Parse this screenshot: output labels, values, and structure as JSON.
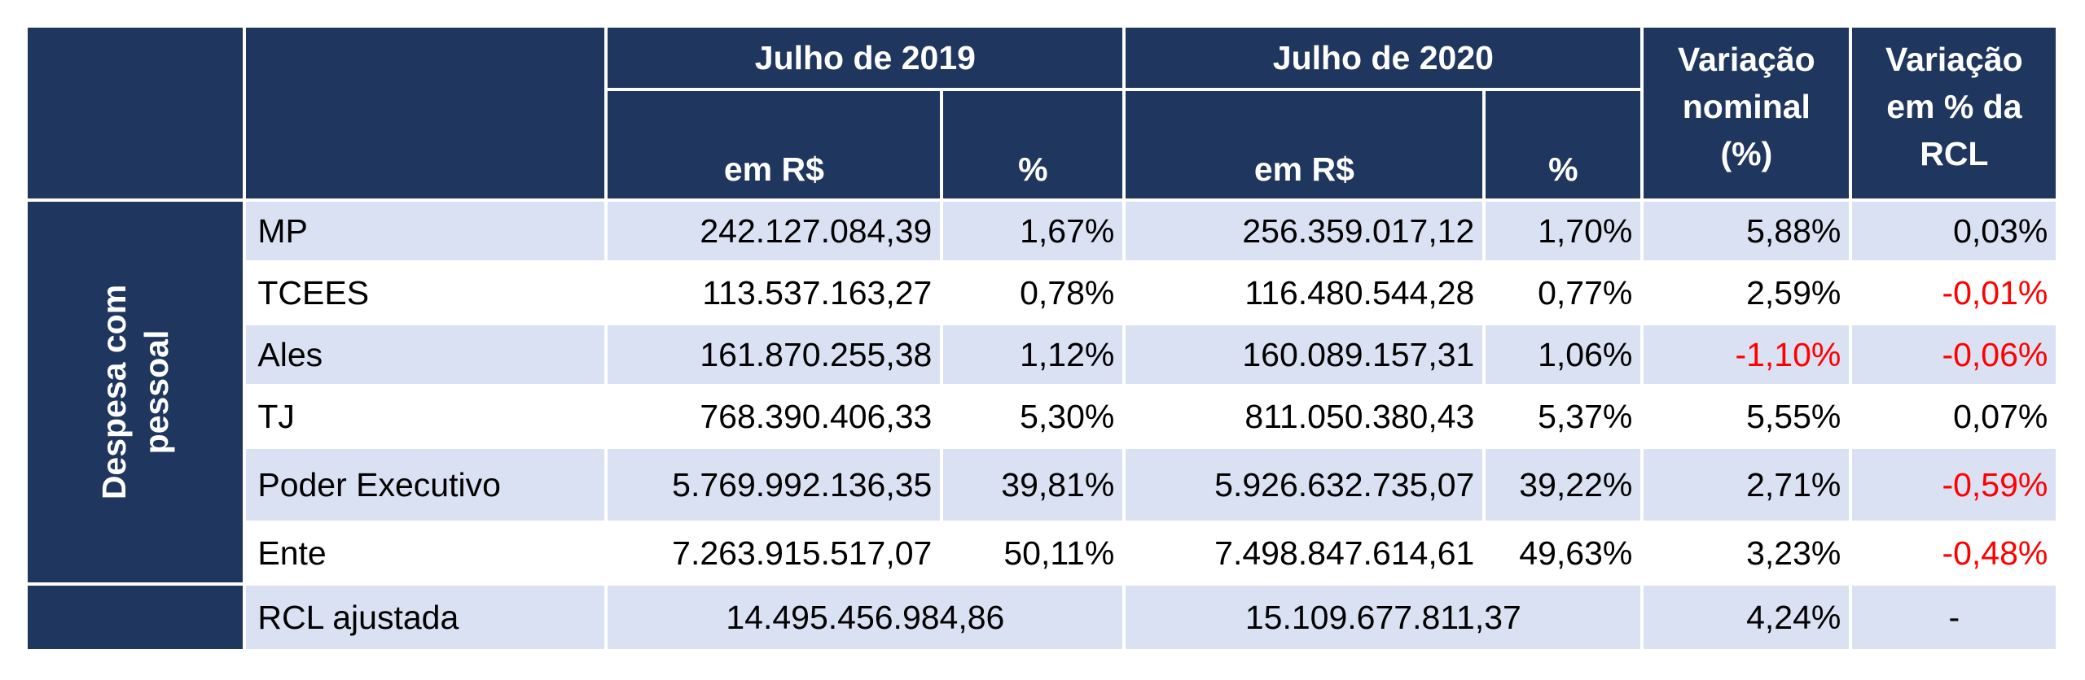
{
  "headers": {
    "julho2019": "Julho de 2019",
    "julho2020": "Julho de 2020",
    "em_rs": "em R$",
    "pct": "%",
    "variacao_nominal_l1": "Variação",
    "variacao_nominal_l2": "nominal",
    "variacao_nominal_l3": "(%)",
    "variacao_rcl_l1": "Variação",
    "variacao_rcl_l2": "em % da",
    "variacao_rcl_l3": "RCL"
  },
  "side_label": {
    "line1": "Despesa com",
    "line2": "pessoal"
  },
  "rows": [
    {
      "name": "MP",
      "v2019": "242.127.084,39",
      "p2019": "1,67%",
      "v2020": "256.359.017,12",
      "p2020": "1,70%",
      "var_nom": "5,88%",
      "var_rcl": "0,03%"
    },
    {
      "name": "TCEES",
      "v2019": "113.537.163,27",
      "p2019": "0,78%",
      "v2020": "116.480.544,28",
      "p2020": "0,77%",
      "var_nom": "2,59%",
      "var_rcl": "-0,01%"
    },
    {
      "name": "Ales",
      "v2019": "161.870.255,38",
      "p2019": "1,12%",
      "v2020": "160.089.157,31",
      "p2020": "1,06%",
      "var_nom": "-1,10%",
      "var_rcl": "-0,06%"
    },
    {
      "name": "TJ",
      "v2019": "768.390.406,33",
      "p2019": "5,30%",
      "v2020": "811.050.380,43",
      "p2020": "5,37%",
      "var_nom": "5,55%",
      "var_rcl": "0,07%"
    },
    {
      "name": "Poder Executivo",
      "v2019": "5.769.992.136,35",
      "p2019": "39,81%",
      "v2020": "5.926.632.735,07",
      "p2020": "39,22%",
      "var_nom": "2,71%",
      "var_rcl": "-0,59%"
    },
    {
      "name": "Ente",
      "v2019": "7.263.915.517,07",
      "p2019": "50,11%",
      "v2020": "7.498.847.614,61",
      "p2020": "49,63%",
      "var_nom": "3,23%",
      "var_rcl": "-0,48%"
    }
  ],
  "rcl_row": {
    "name": "RCL ajustada",
    "v2019": "14.495.456.984,86",
    "v2020": "15.109.677.811,37",
    "var_nom": "4,24%",
    "var_rcl": "-"
  },
  "colors": {
    "header_bg": "#1f365f",
    "cell_bg": "#d9e1f2",
    "negative": "#ff0000"
  }
}
